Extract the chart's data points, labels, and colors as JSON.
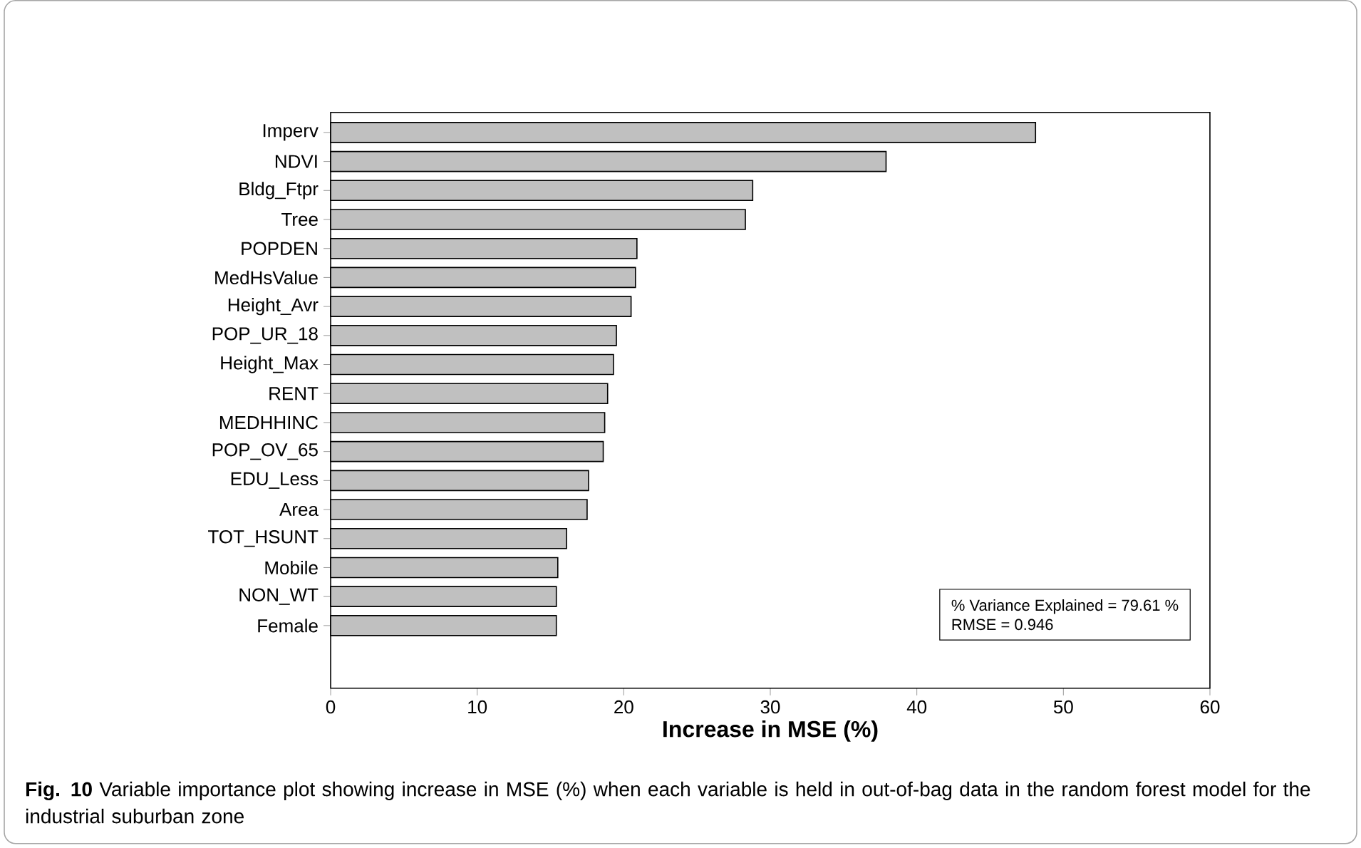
{
  "chart_data": {
    "type": "bar",
    "orientation": "horizontal",
    "categories": [
      "Imperv",
      "NDVI",
      "Bldg_Ftpr",
      "Tree",
      "POPDEN",
      "MedHsValue",
      "Height_Avr",
      "POP_UR_18",
      "Height_Max",
      "RENT",
      "MEDHHINC",
      "POP_OV_65",
      "EDU_Less",
      "Area",
      "TOT_HSUNT",
      "Mobile",
      "NON_WT",
      "Female"
    ],
    "values": [
      48.1,
      37.9,
      28.8,
      28.3,
      20.9,
      20.8,
      20.5,
      19.5,
      19.3,
      18.9,
      18.7,
      18.6,
      17.6,
      17.5,
      16.1,
      15.5,
      15.4,
      15.4
    ],
    "color": "#c0c0c0",
    "xlim": [
      0,
      60
    ],
    "xticks": [
      0,
      10,
      20,
      30,
      40,
      50,
      60
    ],
    "xlabel": "Increase in MSE (%)",
    "annotations": [
      "% Variance Explained = 79.61 %",
      "RMSE = 0.946",
      "**Fig. 10** Variable importance plot showing increase in MSE (%) when each variable is held in out-of-bag data in the random forest model for the industrial suburban zone"
    ]
  }
}
